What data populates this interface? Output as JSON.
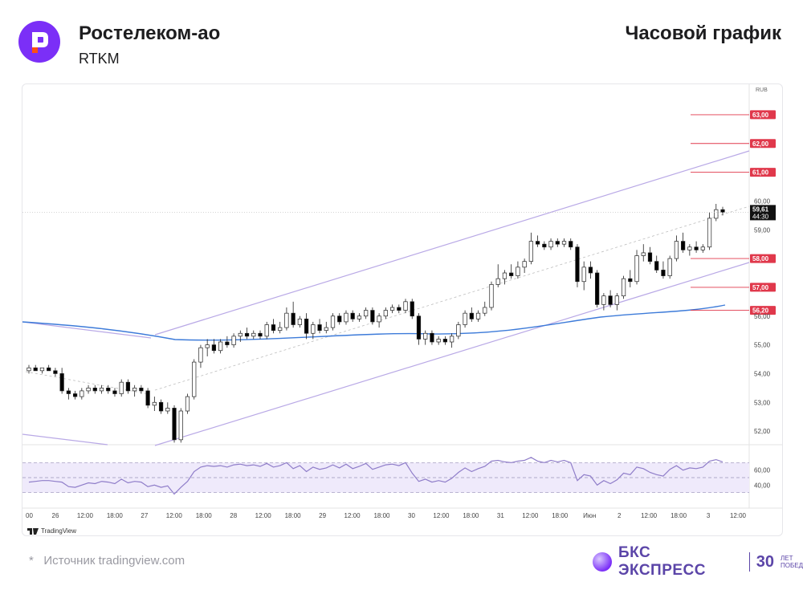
{
  "header": {
    "title": "Ростелеком-ао",
    "ticker": "RTKM",
    "timeframe": "Часовой график"
  },
  "footer": {
    "source_star": "*",
    "source": "Источник tradingview.com",
    "brand_name": "БКС ЭКСПРЕСС",
    "brand_years": "30",
    "brand_sub_1": "лет",
    "brand_sub_2": "побед"
  },
  "colors": {
    "accent": "#7b2ff7",
    "candle_up": "#ffffff",
    "candle_down": "#000000",
    "ma_line": "#3d7bd9",
    "channel": "#b9a9e6",
    "level_line": "#e0384b",
    "rsi_line": "#8f7dc9",
    "rsi_fill": "#efeafb"
  },
  "chart_data": {
    "type": "candlestick",
    "currency_label": "RUB",
    "y_ticks": [
      "52,00",
      "53,00",
      "54,00",
      "55,00",
      "56,00",
      "59,00",
      "60,00"
    ],
    "ylim": [
      51.5,
      63.5
    ],
    "x_ticks": [
      "00",
      "26",
      "12:00",
      "18:00",
      "27",
      "12:00",
      "18:00",
      "28",
      "12:00",
      "18:00",
      "29",
      "12:00",
      "18:00",
      "30",
      "12:00",
      "18:00",
      "31",
      "12:00",
      "18:00",
      "Июн",
      "2",
      "12:00",
      "18:00",
      "3",
      "12:00"
    ],
    "levels": [
      {
        "label": "63,00",
        "value": 63.0
      },
      {
        "label": "62,00",
        "value": 62.0
      },
      {
        "label": "61,00",
        "value": 61.0
      },
      {
        "label": "58,00",
        "value": 58.0
      },
      {
        "label": "57,00",
        "value": 57.0
      },
      {
        "label": "56,20",
        "value": 56.2
      }
    ],
    "last_price": "59,61",
    "countdown": "44:30",
    "candles": [
      [
        54.1,
        54.3,
        54.0,
        54.2
      ],
      [
        54.2,
        54.3,
        54.1,
        54.1
      ],
      [
        54.1,
        54.2,
        54.0,
        54.2
      ],
      [
        54.2,
        54.3,
        54.1,
        54.1
      ],
      [
        54.1,
        54.2,
        53.9,
        54.0
      ],
      [
        54.0,
        54.2,
        53.3,
        53.4
      ],
      [
        53.4,
        53.5,
        53.1,
        53.3
      ],
      [
        53.3,
        53.4,
        53.1,
        53.2
      ],
      [
        53.2,
        53.5,
        53.1,
        53.4
      ],
      [
        53.4,
        53.6,
        53.3,
        53.5
      ],
      [
        53.5,
        53.6,
        53.3,
        53.4
      ],
      [
        53.4,
        53.6,
        53.3,
        53.5
      ],
      [
        53.5,
        53.6,
        53.3,
        53.4
      ],
      [
        53.4,
        53.5,
        53.2,
        53.3
      ],
      [
        53.3,
        53.8,
        53.2,
        53.7
      ],
      [
        53.7,
        53.8,
        53.3,
        53.4
      ],
      [
        53.4,
        53.6,
        53.2,
        53.5
      ],
      [
        53.5,
        53.6,
        53.3,
        53.4
      ],
      [
        53.4,
        53.5,
        52.8,
        52.9
      ],
      [
        52.9,
        53.2,
        52.7,
        53.0
      ],
      [
        53.0,
        53.1,
        52.6,
        52.7
      ],
      [
        52.7,
        53.0,
        52.6,
        52.8
      ],
      [
        52.8,
        52.9,
        51.6,
        51.7
      ],
      [
        51.7,
        52.8,
        51.6,
        52.7
      ],
      [
        52.7,
        53.3,
        52.6,
        53.2
      ],
      [
        53.2,
        54.5,
        53.1,
        54.4
      ],
      [
        54.4,
        55.0,
        54.2,
        54.9
      ],
      [
        54.9,
        55.2,
        54.6,
        55.0
      ],
      [
        55.0,
        55.2,
        54.7,
        54.8
      ],
      [
        54.8,
        55.2,
        54.7,
        55.1
      ],
      [
        55.1,
        55.3,
        54.9,
        55.0
      ],
      [
        55.0,
        55.4,
        54.9,
        55.3
      ],
      [
        55.3,
        55.5,
        55.1,
        55.4
      ],
      [
        55.4,
        55.6,
        55.2,
        55.3
      ],
      [
        55.3,
        55.5,
        55.2,
        55.4
      ],
      [
        55.4,
        55.5,
        55.2,
        55.3
      ],
      [
        55.3,
        55.8,
        55.2,
        55.7
      ],
      [
        55.7,
        55.9,
        55.4,
        55.5
      ],
      [
        55.5,
        55.8,
        55.4,
        55.6
      ],
      [
        55.6,
        56.3,
        55.5,
        56.1
      ],
      [
        56.1,
        56.5,
        55.6,
        55.7
      ],
      [
        55.7,
        56.0,
        55.6,
        55.9
      ],
      [
        55.9,
        56.1,
        55.2,
        55.4
      ],
      [
        55.4,
        55.8,
        55.2,
        55.7
      ],
      [
        55.7,
        55.9,
        55.4,
        55.5
      ],
      [
        55.5,
        55.8,
        55.4,
        55.6
      ],
      [
        55.6,
        56.1,
        55.5,
        56.0
      ],
      [
        56.0,
        56.1,
        55.7,
        55.8
      ],
      [
        55.8,
        56.2,
        55.7,
        56.1
      ],
      [
        56.1,
        56.2,
        55.8,
        55.9
      ],
      [
        55.9,
        56.1,
        55.8,
        56.0
      ],
      [
        56.0,
        56.3,
        55.9,
        56.2
      ],
      [
        56.2,
        56.3,
        55.7,
        55.8
      ],
      [
        55.8,
        56.1,
        55.6,
        56.0
      ],
      [
        56.0,
        56.3,
        55.9,
        56.2
      ],
      [
        56.2,
        56.4,
        56.1,
        56.3
      ],
      [
        56.3,
        56.4,
        56.1,
        56.2
      ],
      [
        56.2,
        56.6,
        56.1,
        56.5
      ],
      [
        56.5,
        56.6,
        55.9,
        56.0
      ],
      [
        56.0,
        56.1,
        55.0,
        55.2
      ],
      [
        55.2,
        55.5,
        55.0,
        55.4
      ],
      [
        55.4,
        55.5,
        55.0,
        55.1
      ],
      [
        55.1,
        55.3,
        55.0,
        55.2
      ],
      [
        55.2,
        55.3,
        55.0,
        55.1
      ],
      [
        55.1,
        55.4,
        54.9,
        55.3
      ],
      [
        55.3,
        55.8,
        55.2,
        55.7
      ],
      [
        55.7,
        56.2,
        55.6,
        56.1
      ],
      [
        56.1,
        56.3,
        55.8,
        55.9
      ],
      [
        55.9,
        56.2,
        55.8,
        56.1
      ],
      [
        56.1,
        56.5,
        56.0,
        56.3
      ],
      [
        56.3,
        57.2,
        56.2,
        57.1
      ],
      [
        57.1,
        57.8,
        57.0,
        57.3
      ],
      [
        57.3,
        57.6,
        57.1,
        57.5
      ],
      [
        57.5,
        57.8,
        57.3,
        57.4
      ],
      [
        57.4,
        57.9,
        57.3,
        57.7
      ],
      [
        57.7,
        58.0,
        57.5,
        57.9
      ],
      [
        57.9,
        58.9,
        57.8,
        58.6
      ],
      [
        58.6,
        58.8,
        58.4,
        58.5
      ],
      [
        58.5,
        58.6,
        58.3,
        58.4
      ],
      [
        58.4,
        58.7,
        58.3,
        58.6
      ],
      [
        58.6,
        58.7,
        58.4,
        58.5
      ],
      [
        58.5,
        58.7,
        58.4,
        58.6
      ],
      [
        58.6,
        58.7,
        58.3,
        58.4
      ],
      [
        58.4,
        58.5,
        57.0,
        57.2
      ],
      [
        57.2,
        57.9,
        56.9,
        57.7
      ],
      [
        57.7,
        57.9,
        57.3,
        57.5
      ],
      [
        57.5,
        57.6,
        56.3,
        56.4
      ],
      [
        56.4,
        56.8,
        56.2,
        56.7
      ],
      [
        56.7,
        56.9,
        56.3,
        56.4
      ],
      [
        56.4,
        56.8,
        56.2,
        56.7
      ],
      [
        56.7,
        57.4,
        56.6,
        57.3
      ],
      [
        57.3,
        57.6,
        57.0,
        57.2
      ],
      [
        57.2,
        58.3,
        57.1,
        58.1
      ],
      [
        58.1,
        58.5,
        57.9,
        58.2
      ],
      [
        58.2,
        58.4,
        57.8,
        57.9
      ],
      [
        57.9,
        58.1,
        57.5,
        57.6
      ],
      [
        57.6,
        57.9,
        57.3,
        57.4
      ],
      [
        57.4,
        58.1,
        57.3,
        58.0
      ],
      [
        58.0,
        58.8,
        57.9,
        58.6
      ],
      [
        58.6,
        58.9,
        58.2,
        58.3
      ],
      [
        58.3,
        58.5,
        58.1,
        58.4
      ],
      [
        58.4,
        58.6,
        58.2,
        58.3
      ],
      [
        58.3,
        58.5,
        58.2,
        58.4
      ],
      [
        58.4,
        59.6,
        58.3,
        59.4
      ],
      [
        59.4,
        59.9,
        59.3,
        59.7
      ],
      [
        59.7,
        59.8,
        59.5,
        59.61
      ]
    ],
    "rsi_ticks": [
      "60,00",
      "40,00"
    ],
    "rsi_values": [
      44,
      45,
      46,
      46,
      45,
      44,
      38,
      37,
      40,
      43,
      42,
      45,
      44,
      42,
      48,
      43,
      45,
      44,
      38,
      40,
      37,
      39,
      28,
      37,
      45,
      58,
      64,
      66,
      65,
      66,
      64,
      67,
      68,
      66,
      67,
      65,
      69,
      64,
      66,
      70,
      62,
      66,
      58,
      64,
      61,
      63,
      67,
      63,
      68,
      62,
      65,
      69,
      61,
      64,
      67,
      68,
      66,
      70,
      56,
      45,
      48,
      44,
      46,
      44,
      49,
      57,
      63,
      58,
      62,
      65,
      72,
      73,
      71,
      70,
      72,
      73,
      77,
      72,
      70,
      73,
      71,
      73,
      70,
      46,
      54,
      52,
      40,
      46,
      42,
      47,
      56,
      54,
      64,
      62,
      57,
      54,
      52,
      61,
      66,
      60,
      63,
      62,
      64,
      72,
      74,
      71
    ]
  }
}
